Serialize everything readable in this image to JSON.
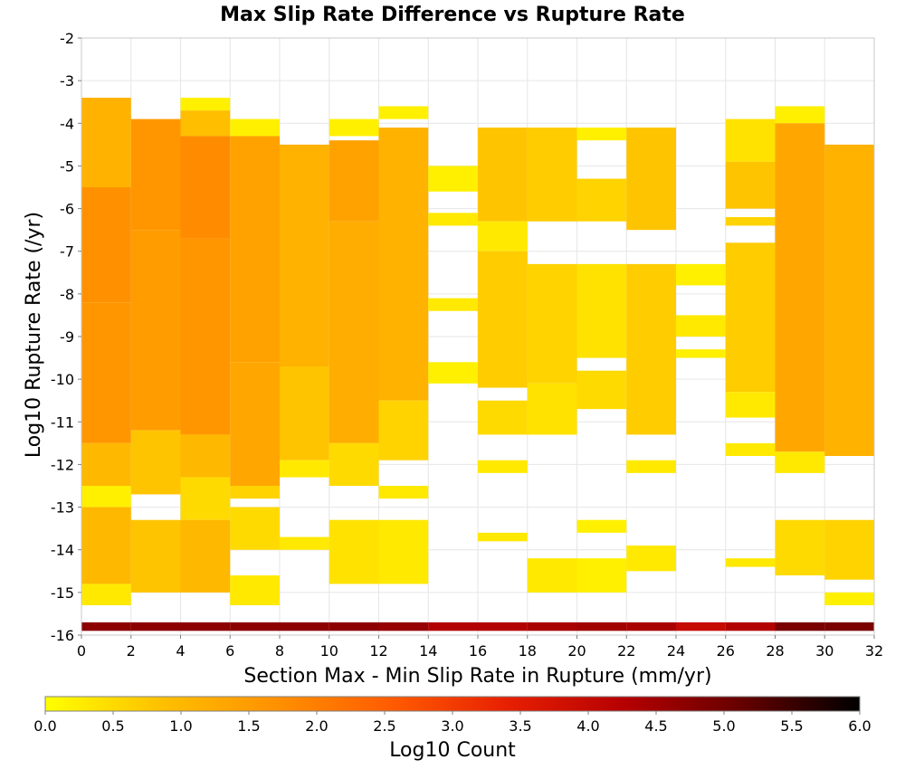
{
  "chart_data": {
    "type": "heatmap",
    "title": "Max Slip Rate Difference vs Rupture Rate",
    "xlabel": "Section Max - Min Slip Rate in Rupture (mm/yr)",
    "ylabel": "Log10 Rupture Rate (/yr)",
    "xlim": [
      0,
      32
    ],
    "ylim": [
      -16,
      -2
    ],
    "x_ticks": [
      "0",
      "2",
      "4",
      "6",
      "8",
      "10",
      "12",
      "14",
      "16",
      "18",
      "20",
      "22",
      "24",
      "26",
      "28",
      "30",
      "32"
    ],
    "y_ticks": [
      "-2",
      "-3",
      "-4",
      "-5",
      "-6",
      "-7",
      "-8",
      "-9",
      "-10",
      "-11",
      "-12",
      "-13",
      "-14",
      "-15",
      "-16"
    ],
    "grid": true,
    "x_bin_width": 2,
    "y_bin_height": 0.25,
    "colorbar": {
      "label": "Log10 Count",
      "min": 0,
      "max": 6,
      "ticks": [
        "0.0",
        "0.5",
        "1.0",
        "1.5",
        "2.0",
        "2.5",
        "3.0",
        "3.5",
        "4.0",
        "4.5",
        "5.0",
        "5.5",
        "6.0"
      ],
      "colormap": [
        "#ffff00",
        "#ffc000",
        "#ff9000",
        "#ff5a00",
        "#e61e00",
        "#b40000",
        "#640000",
        "#000000"
      ]
    },
    "columns": [
      {
        "x": 1,
        "cells": [
          [
            -3.4,
            -5.5,
            1.1
          ],
          [
            -5.5,
            -8.2,
            1.7
          ],
          [
            -8.2,
            -11.5,
            1.6
          ],
          [
            -11.5,
            -12.5,
            1.0
          ],
          [
            -12.5,
            -13.0,
            0.2
          ],
          [
            -13.0,
            -14.8,
            1.0
          ],
          [
            -14.8,
            -15.3,
            0.3
          ],
          [
            -15.7,
            -15.9,
            4.7
          ]
        ]
      },
      {
        "x": 3,
        "cells": [
          [
            -3.9,
            -6.5,
            1.6
          ],
          [
            -6.5,
            -11.2,
            1.5
          ],
          [
            -11.2,
            -12.7,
            0.8
          ],
          [
            -13.3,
            -15.0,
            0.8
          ],
          [
            -15.7,
            -15.9,
            4.7
          ]
        ]
      },
      {
        "x": 5,
        "cells": [
          [
            -3.4,
            -3.7,
            0.2
          ],
          [
            -3.7,
            -4.3,
            0.9
          ],
          [
            -4.3,
            -6.7,
            1.8
          ],
          [
            -6.7,
            -11.3,
            1.6
          ],
          [
            -11.3,
            -12.3,
            1.0
          ],
          [
            -12.3,
            -13.3,
            0.5
          ],
          [
            -13.3,
            -15.0,
            1.0
          ],
          [
            -15.7,
            -15.9,
            4.7
          ]
        ]
      },
      {
        "x": 7,
        "cells": [
          [
            -3.9,
            -4.3,
            0.2
          ],
          [
            -4.3,
            -9.6,
            1.4
          ],
          [
            -9.6,
            -12.5,
            1.3
          ],
          [
            -12.5,
            -12.8,
            0.6
          ],
          [
            -13.0,
            -14.0,
            0.5
          ],
          [
            -14.6,
            -15.3,
            0.3
          ],
          [
            -15.7,
            -15.9,
            4.7
          ]
        ]
      },
      {
        "x": 9,
        "cells": [
          [
            -4.5,
            -9.7,
            1.1
          ],
          [
            -9.7,
            -11.9,
            0.8
          ],
          [
            -11.9,
            -12.3,
            0.3
          ],
          [
            -13.7,
            -14.0,
            0.3
          ],
          [
            -15.7,
            -15.9,
            4.7
          ]
        ]
      },
      {
        "x": 11,
        "cells": [
          [
            -3.9,
            -4.3,
            0.2
          ],
          [
            -4.4,
            -6.3,
            1.4
          ],
          [
            -6.3,
            -11.5,
            1.2
          ],
          [
            -11.5,
            -12.5,
            0.5
          ],
          [
            -13.3,
            -14.8,
            0.4
          ],
          [
            -15.7,
            -15.9,
            4.7
          ]
        ]
      },
      {
        "x": 13,
        "cells": [
          [
            -3.6,
            -3.9,
            0.2
          ],
          [
            -4.1,
            -10.5,
            1.1
          ],
          [
            -10.5,
            -11.9,
            0.6
          ],
          [
            -12.5,
            -12.8,
            0.3
          ],
          [
            -13.3,
            -14.8,
            0.3
          ],
          [
            -15.7,
            -15.9,
            4.6
          ]
        ]
      },
      {
        "x": 15,
        "cells": [
          [
            -5.0,
            -5.6,
            0.2
          ],
          [
            -6.1,
            -6.4,
            0.3
          ],
          [
            -8.1,
            -8.4,
            0.3
          ],
          [
            -9.6,
            -10.1,
            0.2
          ],
          [
            -15.7,
            -15.9,
            4.3
          ]
        ]
      },
      {
        "x": 17,
        "cells": [
          [
            -4.1,
            -6.3,
            0.8
          ],
          [
            -6.3,
            -7.0,
            0.3
          ],
          [
            -7.0,
            -10.2,
            0.7
          ],
          [
            -10.5,
            -11.3,
            0.5
          ],
          [
            -11.9,
            -12.2,
            0.3
          ],
          [
            -13.6,
            -13.8,
            0.3
          ],
          [
            -15.7,
            -15.9,
            4.3
          ]
        ]
      },
      {
        "x": 19,
        "cells": [
          [
            -4.1,
            -6.3,
            0.7
          ],
          [
            -7.3,
            -10.1,
            0.6
          ],
          [
            -10.1,
            -11.3,
            0.4
          ],
          [
            -14.2,
            -15.0,
            0.3
          ],
          [
            -15.7,
            -15.9,
            4.4
          ]
        ]
      },
      {
        "x": 21,
        "cells": [
          [
            -4.1,
            -4.4,
            0.2
          ],
          [
            -5.3,
            -6.3,
            0.6
          ],
          [
            -7.3,
            -9.5,
            0.4
          ],
          [
            -9.8,
            -10.7,
            0.5
          ],
          [
            -13.3,
            -13.6,
            0.2
          ],
          [
            -14.2,
            -15.0,
            0.2
          ],
          [
            -15.7,
            -15.9,
            4.5
          ]
        ]
      },
      {
        "x": 23,
        "cells": [
          [
            -4.1,
            -6.5,
            0.8
          ],
          [
            -7.3,
            -11.3,
            0.7
          ],
          [
            -11.9,
            -12.2,
            0.3
          ],
          [
            -13.9,
            -14.5,
            0.3
          ],
          [
            -15.7,
            -15.9,
            4.4
          ]
        ]
      },
      {
        "x": 25,
        "cells": [
          [
            -7.3,
            -7.8,
            0.2
          ],
          [
            -8.5,
            -9.0,
            0.3
          ],
          [
            -9.3,
            -9.5,
            0.2
          ],
          [
            -15.7,
            -15.9,
            4.0
          ]
        ]
      },
      {
        "x": 27,
        "cells": [
          [
            -3.9,
            -4.9,
            0.4
          ],
          [
            -4.9,
            -6.0,
            0.8
          ],
          [
            -6.2,
            -6.4,
            0.6
          ],
          [
            -6.8,
            -10.3,
            0.7
          ],
          [
            -10.3,
            -10.9,
            0.3
          ],
          [
            -11.5,
            -11.8,
            0.3
          ],
          [
            -14.2,
            -14.4,
            0.3
          ],
          [
            -15.7,
            -15.9,
            4.3
          ]
        ]
      },
      {
        "x": 29,
        "cells": [
          [
            -3.6,
            -4.0,
            0.2
          ],
          [
            -4.0,
            -11.7,
            1.3
          ],
          [
            -11.7,
            -12.2,
            0.3
          ],
          [
            -13.3,
            -14.6,
            0.5
          ],
          [
            -15.7,
            -15.9,
            4.9
          ]
        ]
      },
      {
        "x": 31,
        "cells": [
          [
            -4.5,
            -11.8,
            1.1
          ],
          [
            -13.3,
            -14.7,
            0.6
          ],
          [
            -15.0,
            -15.3,
            0.2
          ],
          [
            -15.7,
            -15.9,
            4.9
          ]
        ]
      }
    ]
  }
}
